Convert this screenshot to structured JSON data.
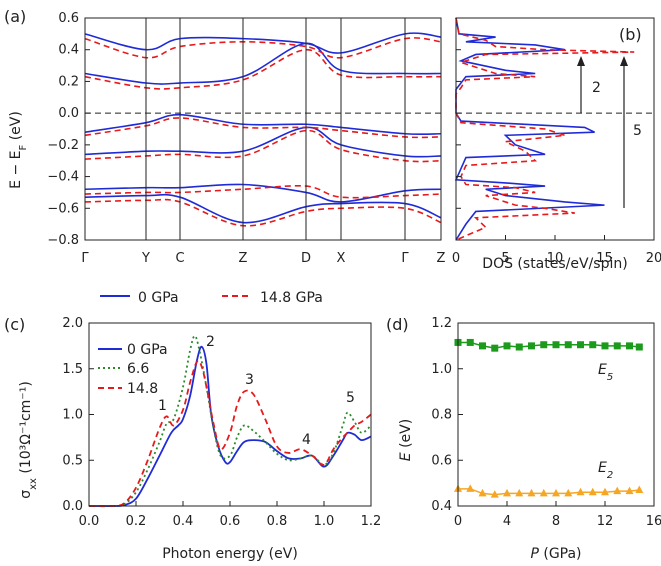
{
  "chart_data": [
    {
      "panel": "(a)",
      "type": "line",
      "ylabel": "E − E_F (eV)",
      "ylim": [
        -0.8,
        0.6
      ],
      "yticks": [
        "0.6",
        "0.4",
        "0.2",
        "0.0",
        "−0.2",
        "−0.4",
        "−0.6",
        "−0.8"
      ],
      "x_labels": [
        "Γ",
        "Y",
        "C",
        "Z",
        "D",
        "X",
        "Γ",
        "Z"
      ],
      "legend": [
        "0 GPa",
        "14.8 GPa"
      ],
      "series": [
        {
          "name": "0 GPa",
          "color": "#1f2bd6",
          "style": "solid"
        },
        {
          "name": "14.8 GPa",
          "color": "#e8191b",
          "style": "dashed"
        }
      ]
    },
    {
      "panel": "(b)",
      "type": "line",
      "xlabel": "DOS (states/eV/spin)",
      "xlim": [
        0,
        20
      ],
      "xticks": [
        "0",
        "5",
        "10",
        "15",
        "20"
      ],
      "annotations": [
        "2",
        "5"
      ]
    },
    {
      "panel": "(c)",
      "type": "line",
      "xlabel": "Photon energy (eV)",
      "ylabel": "σ_xx (10³Ω⁻¹cm⁻¹)",
      "xlim": [
        0,
        1.2
      ],
      "ylim": [
        0,
        2.0
      ],
      "xticks": [
        "0.0",
        "0.2",
        "0.4",
        "0.6",
        "0.8",
        "1.0",
        "1.2"
      ],
      "yticks": [
        "0.0",
        "0.5",
        "1.0",
        "1.5",
        "2.0"
      ],
      "peak_labels": [
        "1",
        "2",
        "3",
        "4",
        "5"
      ],
      "series": [
        {
          "name": "0 GPa",
          "color": "#1f2bd6",
          "style": "solid",
          "x": [
            0.0,
            0.1,
            0.15,
            0.2,
            0.25,
            0.3,
            0.35,
            0.38,
            0.4,
            0.43,
            0.46,
            0.48,
            0.5,
            0.52,
            0.55,
            0.58,
            0.6,
            0.63,
            0.66,
            0.7,
            0.75,
            0.8,
            0.85,
            0.9,
            0.95,
            1.0,
            1.04,
            1.08,
            1.1,
            1.13,
            1.16,
            1.2
          ],
          "y": [
            0.0,
            0.0,
            0.01,
            0.08,
            0.3,
            0.55,
            0.8,
            0.88,
            0.95,
            1.2,
            1.6,
            1.74,
            1.55,
            1.0,
            0.65,
            0.48,
            0.48,
            0.6,
            0.7,
            0.72,
            0.7,
            0.6,
            0.52,
            0.52,
            0.55,
            0.43,
            0.55,
            0.72,
            0.8,
            0.78,
            0.72,
            0.76
          ]
        },
        {
          "name": "6.6",
          "color": "#2a8a2a",
          "style": "dotted",
          "x": [
            0.0,
            0.1,
            0.15,
            0.2,
            0.25,
            0.3,
            0.33,
            0.36,
            0.4,
            0.43,
            0.45,
            0.47,
            0.5,
            0.53,
            0.56,
            0.6,
            0.63,
            0.66,
            0.7,
            0.75,
            0.8,
            0.85,
            0.9,
            0.95,
            1.0,
            1.04,
            1.08,
            1.1,
            1.13,
            1.16,
            1.2
          ],
          "y": [
            0.0,
            0.0,
            0.02,
            0.15,
            0.4,
            0.7,
            0.9,
            0.95,
            1.3,
            1.7,
            1.86,
            1.7,
            1.3,
            0.85,
            0.55,
            0.55,
            0.75,
            0.88,
            0.82,
            0.7,
            0.57,
            0.5,
            0.52,
            0.55,
            0.45,
            0.58,
            0.88,
            1.02,
            0.92,
            0.8,
            0.88
          ]
        },
        {
          "name": "14.8",
          "color": "#e8191b",
          "style": "dashed",
          "x": [
            0.0,
            0.1,
            0.15,
            0.2,
            0.25,
            0.3,
            0.33,
            0.36,
            0.4,
            0.43,
            0.46,
            0.48,
            0.5,
            0.53,
            0.56,
            0.6,
            0.63,
            0.66,
            0.7,
            0.75,
            0.8,
            0.85,
            0.9,
            0.95,
            1.0,
            1.04,
            1.08,
            1.1,
            1.13,
            1.16,
            1.2
          ],
          "y": [
            0.0,
            0.0,
            0.03,
            0.2,
            0.5,
            0.85,
            0.98,
            0.88,
            1.05,
            1.35,
            1.58,
            1.52,
            1.3,
            0.9,
            0.62,
            0.8,
            1.1,
            1.25,
            1.22,
            0.95,
            0.65,
            0.58,
            0.62,
            0.55,
            0.45,
            0.62,
            0.75,
            0.8,
            0.88,
            0.92,
            1.0
          ]
        }
      ]
    },
    {
      "panel": "(d)",
      "type": "scatter",
      "xlabel": "P (GPa)",
      "ylabel": "E (eV)",
      "xlim": [
        0,
        16
      ],
      "ylim": [
        0.4,
        1.2
      ],
      "xticks": [
        "0",
        "4",
        "8",
        "12",
        "16"
      ],
      "yticks": [
        "0.4",
        "0.6",
        "0.8",
        "1.0",
        "1.2"
      ],
      "series": [
        {
          "name": "E₅",
          "color": "#1c9a1c",
          "marker": "square",
          "x": [
            0,
            1,
            2,
            3,
            4,
            5,
            6,
            7,
            8,
            9,
            10,
            11,
            12,
            13,
            14,
            14.8
          ],
          "y": [
            1.115,
            1.115,
            1.1,
            1.09,
            1.1,
            1.095,
            1.1,
            1.105,
            1.105,
            1.105,
            1.105,
            1.105,
            1.1,
            1.1,
            1.1,
            1.095
          ]
        },
        {
          "name": "E₂",
          "color": "#f5a623",
          "marker": "triangle",
          "x": [
            0,
            1,
            2,
            3,
            4,
            5,
            6,
            7,
            8,
            9,
            10,
            11,
            12,
            13,
            14,
            14.8
          ],
          "y": [
            0.475,
            0.475,
            0.455,
            0.45,
            0.455,
            0.455,
            0.455,
            0.455,
            0.455,
            0.455,
            0.46,
            0.46,
            0.46,
            0.465,
            0.465,
            0.47
          ]
        }
      ]
    }
  ]
}
